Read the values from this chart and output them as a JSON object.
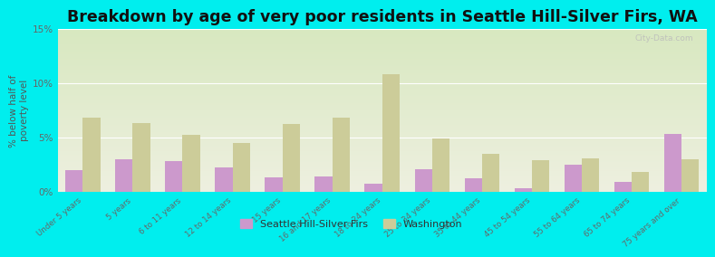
{
  "title": "Breakdown by age of very poor residents in Seattle Hill-Silver Firs, WA",
  "ylabel": "% below half of\npoverty level",
  "categories": [
    "Under 5 years",
    "5 years",
    "6 to 11 years",
    "12 to 14 years",
    "15 years",
    "16 and 17 years",
    "18 to 24 years",
    "25 to 34 years",
    "35 to 44 years",
    "45 to 54 years",
    "55 to 64 years",
    "65 to 74 years",
    "75 years and over"
  ],
  "seattle_values": [
    2.0,
    3.0,
    2.8,
    2.2,
    1.3,
    1.4,
    0.7,
    2.1,
    1.2,
    0.3,
    2.5,
    0.9,
    5.3
  ],
  "washington_values": [
    6.8,
    6.3,
    5.2,
    4.5,
    6.2,
    6.8,
    10.8,
    4.9,
    3.5,
    2.9,
    3.1,
    1.8,
    3.0
  ],
  "seattle_color": "#cc99cc",
  "washington_color": "#cccc99",
  "background_color": "#00eeee",
  "plot_bg_top": "#d8e8c0",
  "plot_bg_bottom": "#eef0e0",
  "ylim": [
    0,
    15
  ],
  "yticks": [
    0,
    5,
    10,
    15
  ],
  "ytick_labels": [
    "0%",
    "5%",
    "10%",
    "15%"
  ],
  "bar_width": 0.35,
  "title_fontsize": 12.5,
  "legend_seattle": "Seattle Hill-Silver Firs",
  "legend_washington": "Washington"
}
